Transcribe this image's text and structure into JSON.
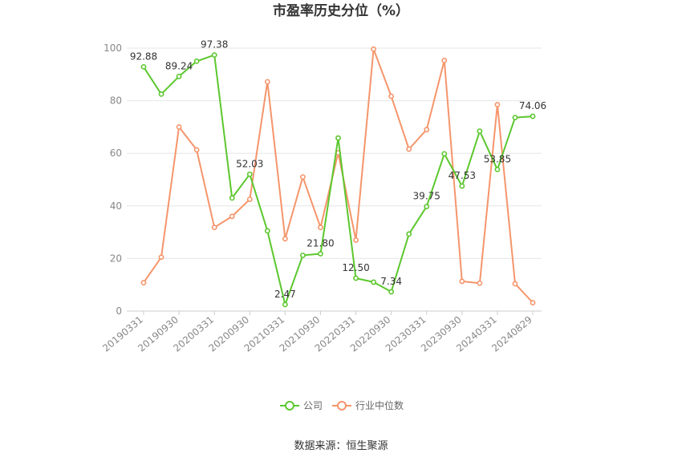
{
  "chart_data": {
    "type": "line",
    "title": "市盈率历史分位（%）",
    "xlabel": "",
    "ylabel": "",
    "ylim": [
      0,
      100
    ],
    "yticks": [
      0,
      20,
      40,
      60,
      80,
      100
    ],
    "grid": true,
    "legend_position": "bottom",
    "x": [
      "20190331",
      "20190630",
      "20190930",
      "20191231",
      "20200331",
      "20200630",
      "20200930",
      "20201231",
      "20210331",
      "20210630",
      "20210930",
      "20211231",
      "20220331",
      "20220630",
      "20220930",
      "20221231",
      "20230331",
      "20230630",
      "20230930",
      "20231231",
      "20240331",
      "20240630",
      "20240829"
    ],
    "x_tick_labels": [
      "20190331",
      "20190930",
      "20200331",
      "20200930",
      "20210331",
      "20210930",
      "20220331",
      "20220930",
      "20230331",
      "20230930",
      "20240331",
      "20240829"
    ],
    "series": [
      {
        "name": "公司",
        "color": "#5cc72e",
        "values": [
          92.88,
          82.5,
          89.24,
          95.0,
          97.38,
          43.0,
          52.03,
          30.5,
          2.47,
          21.2,
          21.8,
          65.8,
          12.5,
          11.0,
          7.34,
          29.3,
          39.75,
          59.8,
          47.53,
          68.4,
          53.85,
          73.6,
          74.06
        ],
        "labels": {
          "0": "92.88",
          "2": "89.24",
          "4": "97.38",
          "6": "52.03",
          "8": "2.47",
          "10": "21.80",
          "12": "12.50",
          "14": "7.34",
          "16": "39.75",
          "18": "47.53",
          "20": "53.85",
          "22": "74.06"
        }
      },
      {
        "name": "行业中位数",
        "color": "#f5956b",
        "values": [
          10.8,
          20.5,
          70.0,
          61.3,
          31.8,
          36.0,
          42.5,
          87.2,
          27.5,
          51.0,
          31.8,
          60.2,
          27.0,
          99.6,
          81.7,
          61.6,
          69.0,
          95.3,
          11.3,
          10.6,
          78.5,
          10.4,
          3.2
        ]
      }
    ]
  },
  "source_text": "数据来源：恒生聚源"
}
